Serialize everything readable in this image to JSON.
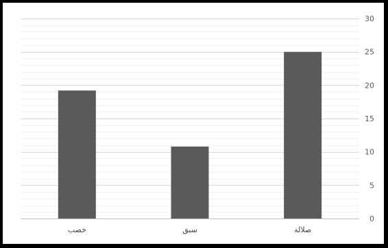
{
  "chart_data": {
    "type": "bar",
    "categories": [
      "خصب",
      "سبق",
      "صلالة"
    ],
    "values": [
      19.2,
      10.8,
      25
    ],
    "title": "",
    "xlabel": "",
    "ylabel": "",
    "ylim": [
      0,
      30
    ],
    "y_ticks": [
      0,
      5,
      10,
      15,
      20,
      25,
      30
    ],
    "y_axis_position": "right",
    "grid": true,
    "minor_grid": true,
    "legend": "none"
  },
  "colors": {
    "bar": "#5a5a5a",
    "major_grid": "#d9d9d9",
    "minor_grid": "#efefef",
    "axis": "#bfbfbf",
    "frame": "#000000"
  }
}
